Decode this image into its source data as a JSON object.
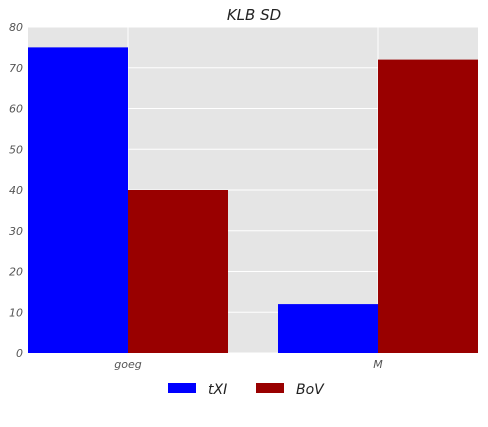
{
  "chart_data": {
    "type": "bar",
    "title": "KLB  SD",
    "xlabel": "",
    "ylabel": "",
    "categories": [
      "goeg",
      "M"
    ],
    "series": [
      {
        "name": "tXI",
        "values": [
          75,
          12
        ],
        "color": "#0000ff"
      },
      {
        "name": "BoV",
        "values": [
          40,
          72
        ],
        "color": "#990000"
      }
    ],
    "ylim": [
      0,
      80
    ],
    "yticks": [
      0,
      10,
      20,
      30,
      40,
      50,
      60,
      70,
      80
    ],
    "grid": true,
    "background_color": "#e5e5e5",
    "legend_position": "bottom-center"
  }
}
